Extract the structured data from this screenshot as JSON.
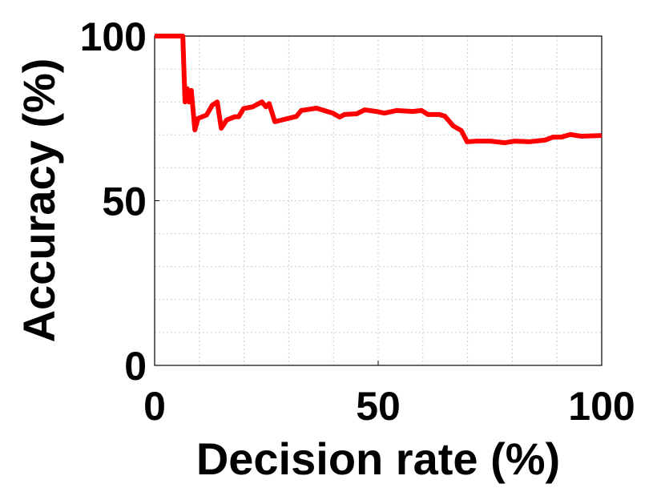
{
  "chart_data": {
    "type": "line",
    "xlabel": "Decision rate (%)",
    "ylabel": "Accuracy (%)",
    "xlim": [
      0,
      100
    ],
    "ylim": [
      0,
      100
    ],
    "xticks": [
      0,
      50,
      100
    ],
    "yticks": [
      0,
      50,
      100
    ],
    "xgrid": [
      10,
      20,
      30,
      40,
      50,
      60,
      70,
      80,
      90
    ],
    "ygrid": [
      10,
      20,
      30,
      40,
      50,
      60,
      70,
      80,
      90
    ],
    "grid": true,
    "series": [
      {
        "color": "#ff0000",
        "x": [
          0,
          6.3,
          6.8,
          7.3,
          7.7,
          8.2,
          9,
          9.7,
          11.6,
          12.9,
          14,
          14.9,
          16.1,
          17.9,
          18.8,
          19.9,
          21.9,
          24,
          24.9,
          25.6,
          26.9,
          29,
          31.7,
          32.8,
          36.2,
          39.8,
          41.4,
          42.5,
          45.2,
          47,
          49.6,
          51.4,
          54.1,
          57.7,
          59.7,
          61.1,
          63.6,
          64.9,
          66.8,
          68.6,
          69.9,
          72,
          75.1,
          78.3,
          80.5,
          83.7,
          87.3,
          89.1,
          90.9,
          93,
          95.3,
          100
        ],
        "values": [
          100,
          100,
          80,
          84,
          80,
          83.5,
          71.5,
          75,
          76,
          79,
          80,
          72,
          74.5,
          75.5,
          75.5,
          78,
          78.5,
          80,
          78.5,
          79.5,
          74,
          74.7,
          75.6,
          77.4,
          78.1,
          76.6,
          75.4,
          76.2,
          76.4,
          77.6,
          77.1,
          76.6,
          77.4,
          77.1,
          77.4,
          76.2,
          76.2,
          75.7,
          72.7,
          71.3,
          67.9,
          68.1,
          68.1,
          67.6,
          68.1,
          67.9,
          68.4,
          69.3,
          69.3,
          70.1,
          69.6,
          69.8
        ]
      }
    ]
  }
}
